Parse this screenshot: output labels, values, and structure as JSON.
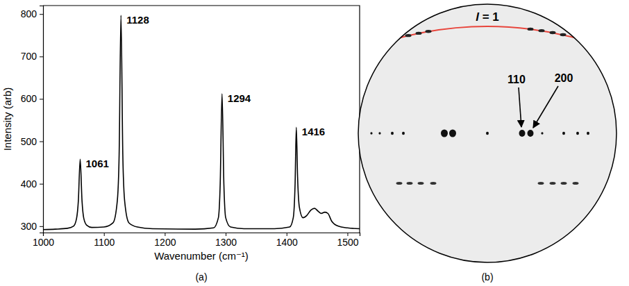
{
  "chart_data": {
    "type": "line",
    "panel_label": "(a)",
    "xlabel": "Wavenumber (cm⁻¹)",
    "ylabel": "Intensity (arb)",
    "color": "#000000",
    "x": [
      1000,
      1020,
      1040,
      1050,
      1055,
      1058,
      1061,
      1064,
      1067,
      1072,
      1080,
      1100,
      1115,
      1122,
      1125,
      1128,
      1131,
      1134,
      1141,
      1155,
      1180,
      1250,
      1280,
      1288,
      1291,
      1294,
      1297,
      1300,
      1308,
      1330,
      1380,
      1405,
      1411,
      1414,
      1416,
      1418,
      1421,
      1427,
      1433,
      1440,
      1446,
      1452,
      1457,
      1463,
      1468,
      1474,
      1485,
      1500,
      1520
    ],
    "values": [
      292,
      293,
      295,
      300,
      318,
      360,
      458,
      360,
      318,
      302,
      297,
      298,
      308,
      360,
      470,
      797,
      470,
      360,
      308,
      298,
      294,
      293,
      296,
      320,
      400,
      612,
      400,
      320,
      298,
      294,
      294,
      298,
      320,
      400,
      533,
      420,
      345,
      320,
      325,
      338,
      342,
      335,
      330,
      333,
      330,
      312,
      300,
      296,
      294
    ],
    "xlim": [
      1000,
      1520
    ],
    "ylim": [
      285,
      820
    ],
    "xticks": [
      1000,
      1100,
      1200,
      1300,
      1400,
      1500
    ],
    "yticks": [
      300,
      400,
      500,
      600,
      700,
      800
    ],
    "annotations": [
      {
        "text": "1061",
        "x": 1061,
        "y": 458
      },
      {
        "text": "1128",
        "x": 1128,
        "y": 797
      },
      {
        "text": "1294",
        "x": 1294,
        "y": 612
      },
      {
        "text": "1416",
        "x": 1416,
        "y": 533
      }
    ]
  },
  "image": {
    "panel_label": "(b)",
    "layer_label": "l = 1",
    "reflections": [
      "110",
      "200"
    ]
  }
}
